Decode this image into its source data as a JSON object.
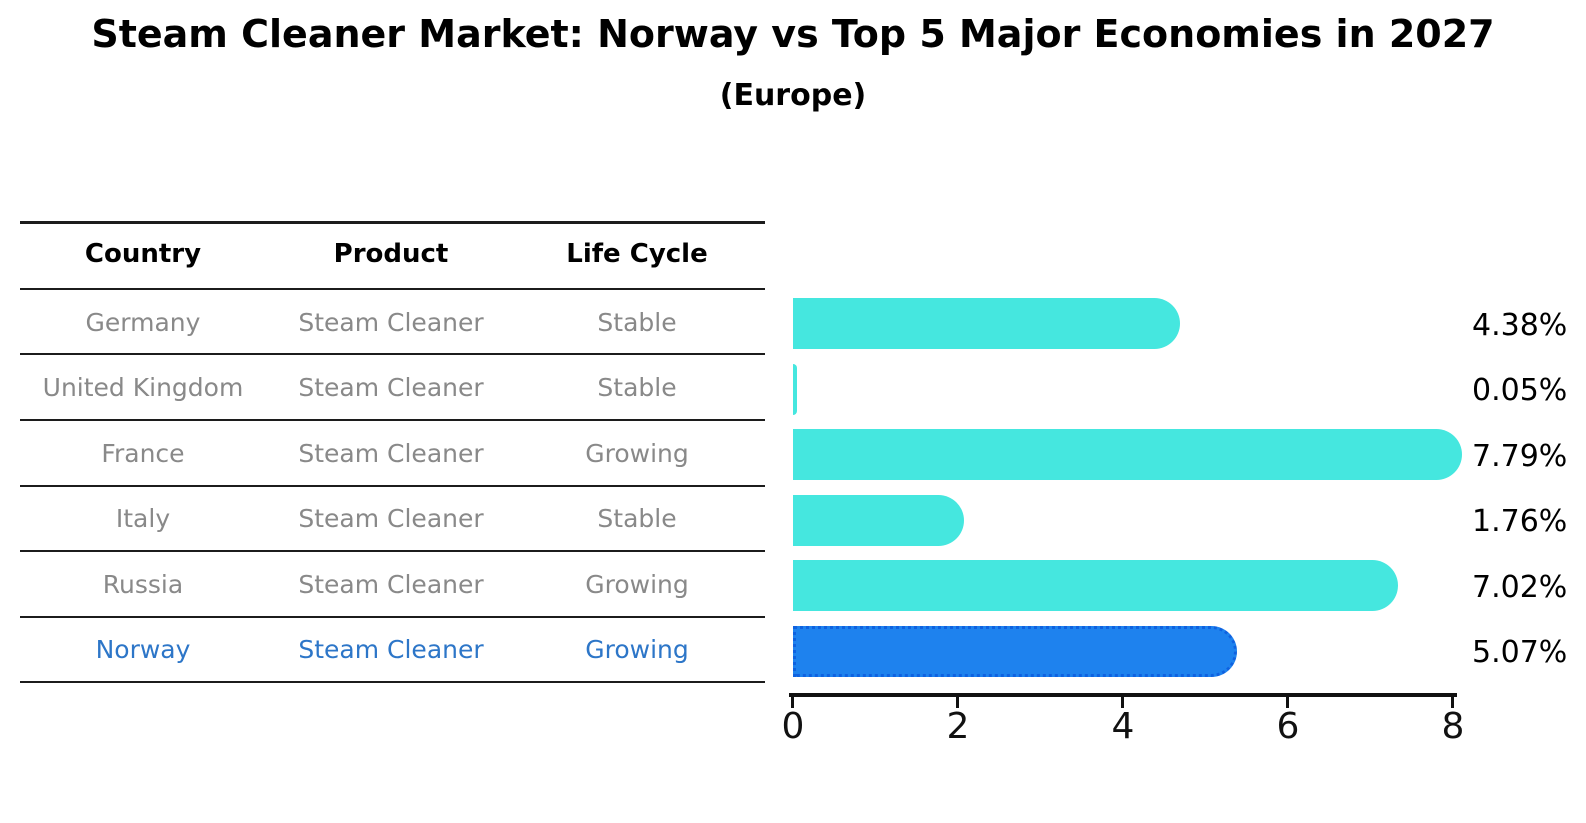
{
  "title": "Steam Cleaner Market: Norway vs Top 5 Major Economies in 2027",
  "subtitle": "(Europe)",
  "table": {
    "headers": {
      "country": "Country",
      "product": "Product",
      "life_cycle": "Life Cycle"
    },
    "rows": [
      {
        "country": "Germany",
        "product": "Steam Cleaner",
        "life_cycle": "Stable",
        "highlight": false
      },
      {
        "country": "United Kingdom",
        "product": "Steam Cleaner",
        "life_cycle": "Stable",
        "highlight": false
      },
      {
        "country": "France",
        "product": "Steam Cleaner",
        "life_cycle": "Growing",
        "highlight": false
      },
      {
        "country": "Italy",
        "product": "Steam Cleaner",
        "life_cycle": "Stable",
        "highlight": false
      },
      {
        "country": "Russia",
        "product": "Steam Cleaner",
        "life_cycle": "Growing",
        "highlight": false
      },
      {
        "country": "Norway",
        "product": "Steam Cleaner",
        "life_cycle": "Growing",
        "highlight": true
      }
    ]
  },
  "chart_data": {
    "type": "bar",
    "orientation": "horizontal",
    "title": "Steam Cleaner Market: Norway vs Top 5 Major Economies in 2027",
    "subtitle": "(Europe)",
    "categories": [
      "Germany",
      "United Kingdom",
      "France",
      "Italy",
      "Russia",
      "Norway"
    ],
    "values": [
      4.38,
      0.05,
      7.79,
      1.76,
      7.02,
      5.07
    ],
    "value_labels": [
      "4.38%",
      "0.05%",
      "7.79%",
      "1.76%",
      "7.02%",
      "5.07%"
    ],
    "xlim": [
      0,
      8
    ],
    "xticks": [
      0,
      2,
      4,
      6,
      8
    ],
    "xtick_labels": [
      "0",
      "2",
      "4",
      "6",
      "8"
    ],
    "highlight_index": 5,
    "grid": false,
    "legend": false
  },
  "colors": {
    "bar": "#45E7DF",
    "highlight_bar": "#1E82EE",
    "highlight_bar_border": "#0F62E0",
    "highlight_text": "#2D76C8",
    "table_text": "#898989",
    "axis": "#111111"
  }
}
